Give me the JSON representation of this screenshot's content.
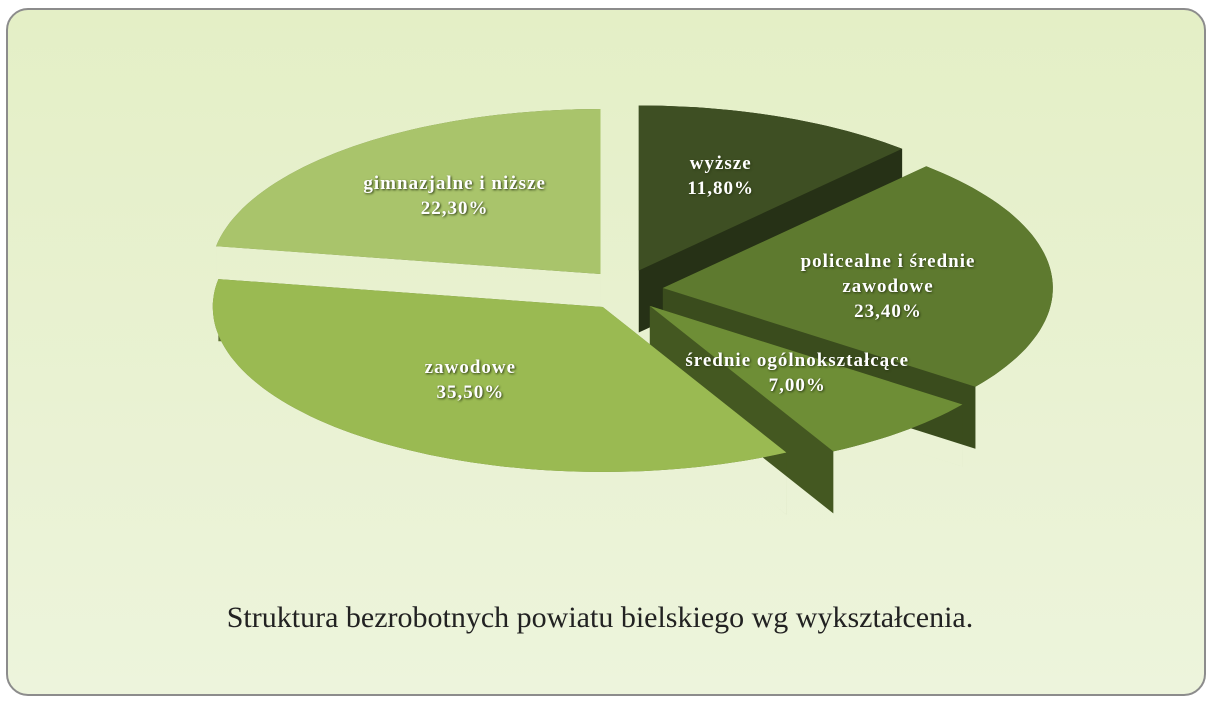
{
  "chart_data": {
    "type": "pie3d",
    "title": "Struktura bezrobotnych powiatu bielskiego wg wykształcenia.",
    "categories": [
      "wyższe",
      "policealne i średnie zawodowe",
      "średnie ogólnokształcące",
      "zawodowe",
      "gimnazjalne i niższe"
    ],
    "values": [
      11.8,
      23.4,
      7.0,
      35.5,
      22.3
    ],
    "value_labels": [
      "11,80%",
      "23,40%",
      "7,00%",
      "35,50%",
      "22,30%"
    ],
    "colors": [
      "#3e4f23",
      "#5e7a2f",
      "#6e8e36",
      "#9aba52",
      "#a9c46b"
    ]
  }
}
